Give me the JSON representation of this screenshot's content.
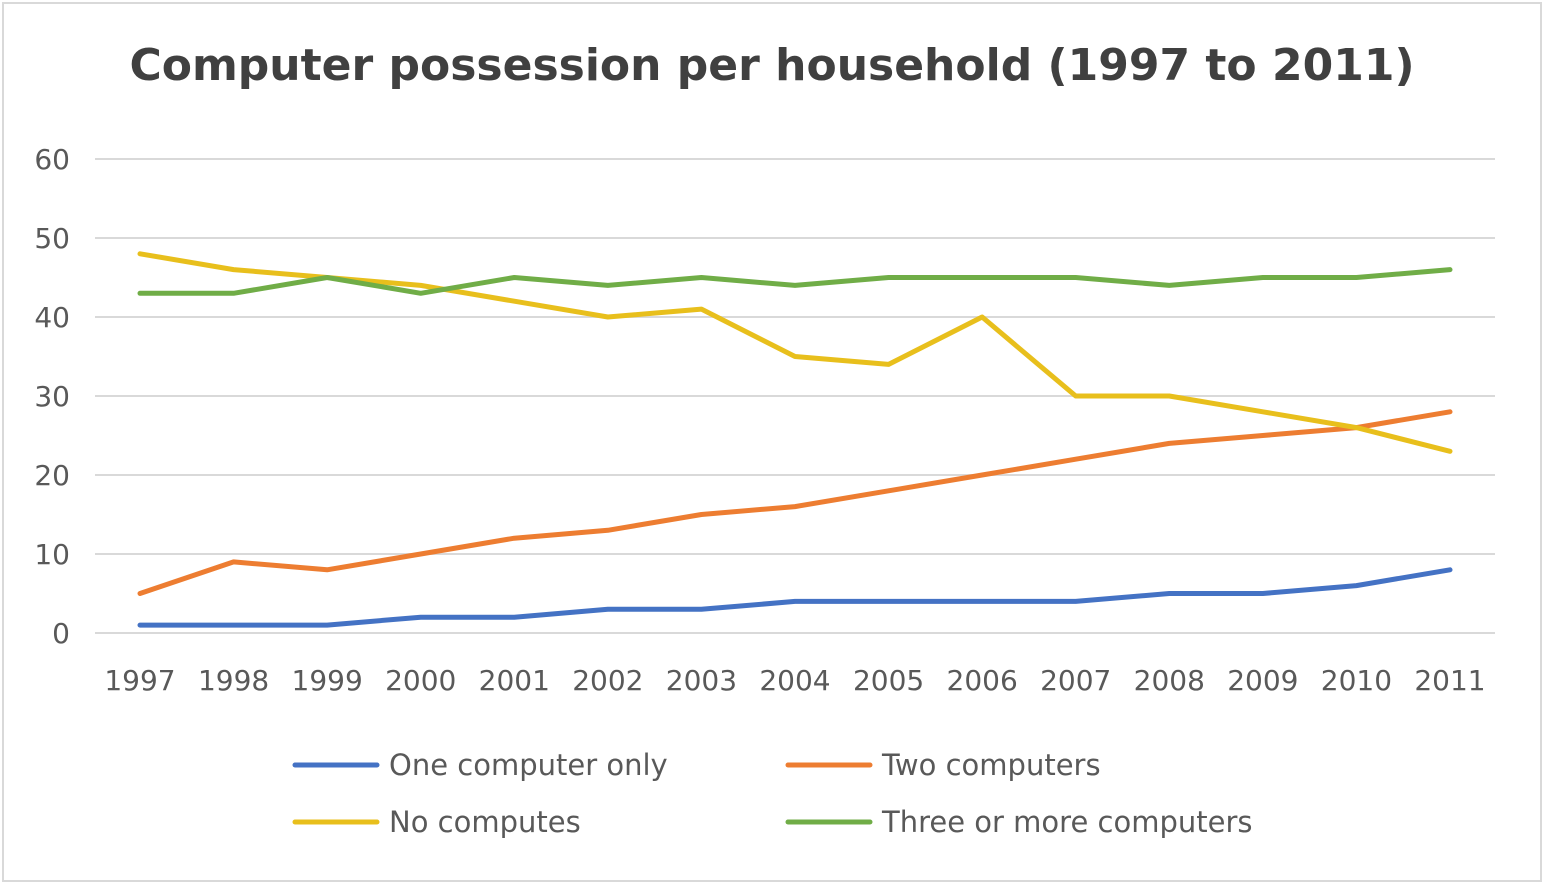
{
  "chart_data": {
    "type": "line",
    "title": "Computer possession per household (1997 to 2011)",
    "xlabel": "",
    "ylabel": "",
    "ylim": [
      0,
      60
    ],
    "yticks": [
      0,
      10,
      20,
      30,
      40,
      50,
      60
    ],
    "grid": true,
    "legend_position": "bottom",
    "categories": [
      "1997",
      "1998",
      "1999",
      "2000",
      "2001",
      "2002",
      "2003",
      "2004",
      "2005",
      "2006",
      "2007",
      "2008",
      "2009",
      "2010",
      "2011"
    ],
    "series": [
      {
        "name": "One computer only",
        "color": "#4472C4",
        "values": [
          1,
          1,
          1,
          2,
          2,
          3,
          3,
          4,
          4,
          4,
          4,
          5,
          5,
          6,
          8
        ]
      },
      {
        "name": "Two computers",
        "color": "#ED7D31",
        "values": [
          5,
          9,
          8,
          10,
          12,
          13,
          15,
          16,
          18,
          20,
          22,
          24,
          25,
          26,
          28
        ]
      },
      {
        "name": "No computes",
        "color": "#E8BF1C",
        "values": [
          48,
          46,
          45,
          44,
          42,
          40,
          41,
          35,
          34,
          40,
          30,
          30,
          28,
          26,
          23
        ]
      },
      {
        "name": "Three or more computers",
        "color": "#70AD47",
        "values": [
          43,
          43,
          45,
          43,
          45,
          44,
          45,
          44,
          45,
          45,
          45,
          44,
          45,
          45,
          46
        ]
      }
    ]
  }
}
